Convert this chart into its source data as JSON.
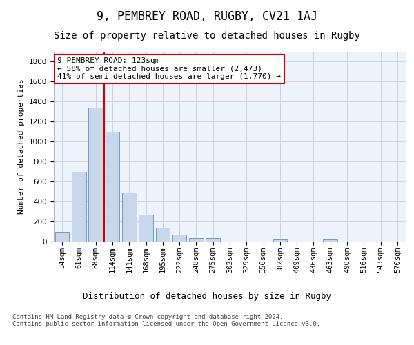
{
  "title": "9, PEMBREY ROAD, RUGBY, CV21 1AJ",
  "subtitle": "Size of property relative to detached houses in Rugby",
  "xlabel": "Distribution of detached houses by size in Rugby",
  "ylabel": "Number of detached properties",
  "categories": [
    "34sqm",
    "61sqm",
    "88sqm",
    "114sqm",
    "141sqm",
    "168sqm",
    "195sqm",
    "222sqm",
    "248sqm",
    "275sqm",
    "302sqm",
    "329sqm",
    "356sqm",
    "382sqm",
    "409sqm",
    "436sqm",
    "463sqm",
    "490sqm",
    "516sqm",
    "543sqm",
    "570sqm"
  ],
  "values": [
    100,
    700,
    1340,
    1100,
    490,
    270,
    140,
    70,
    35,
    35,
    0,
    0,
    0,
    20,
    0,
    0,
    20,
    0,
    0,
    0,
    0
  ],
  "bar_color": "#c8d8ea",
  "bar_edge_color": "#6090b8",
  "vline_x_index": 3,
  "vline_color": "#cc0000",
  "annotation_text": "9 PEMBREY ROAD: 123sqm\n← 58% of detached houses are smaller (2,473)\n41% of semi-detached houses are larger (1,770) →",
  "annotation_box_facecolor": "white",
  "annotation_box_edgecolor": "#cc0000",
  "ylim": [
    0,
    1900
  ],
  "yticks": [
    0,
    200,
    400,
    600,
    800,
    1000,
    1200,
    1400,
    1600,
    1800
  ],
  "footer_text": "Contains HM Land Registry data © Crown copyright and database right 2024.\nContains public sector information licensed under the Open Government Licence v3.0.",
  "bg_color": "#eef2fa",
  "grid_color": "#c5ccd8",
  "title_fontsize": 12,
  "subtitle_fontsize": 10,
  "xlabel_fontsize": 9,
  "ylabel_fontsize": 8,
  "tick_fontsize": 7.5,
  "annotation_fontsize": 8,
  "footer_fontsize": 6.5
}
